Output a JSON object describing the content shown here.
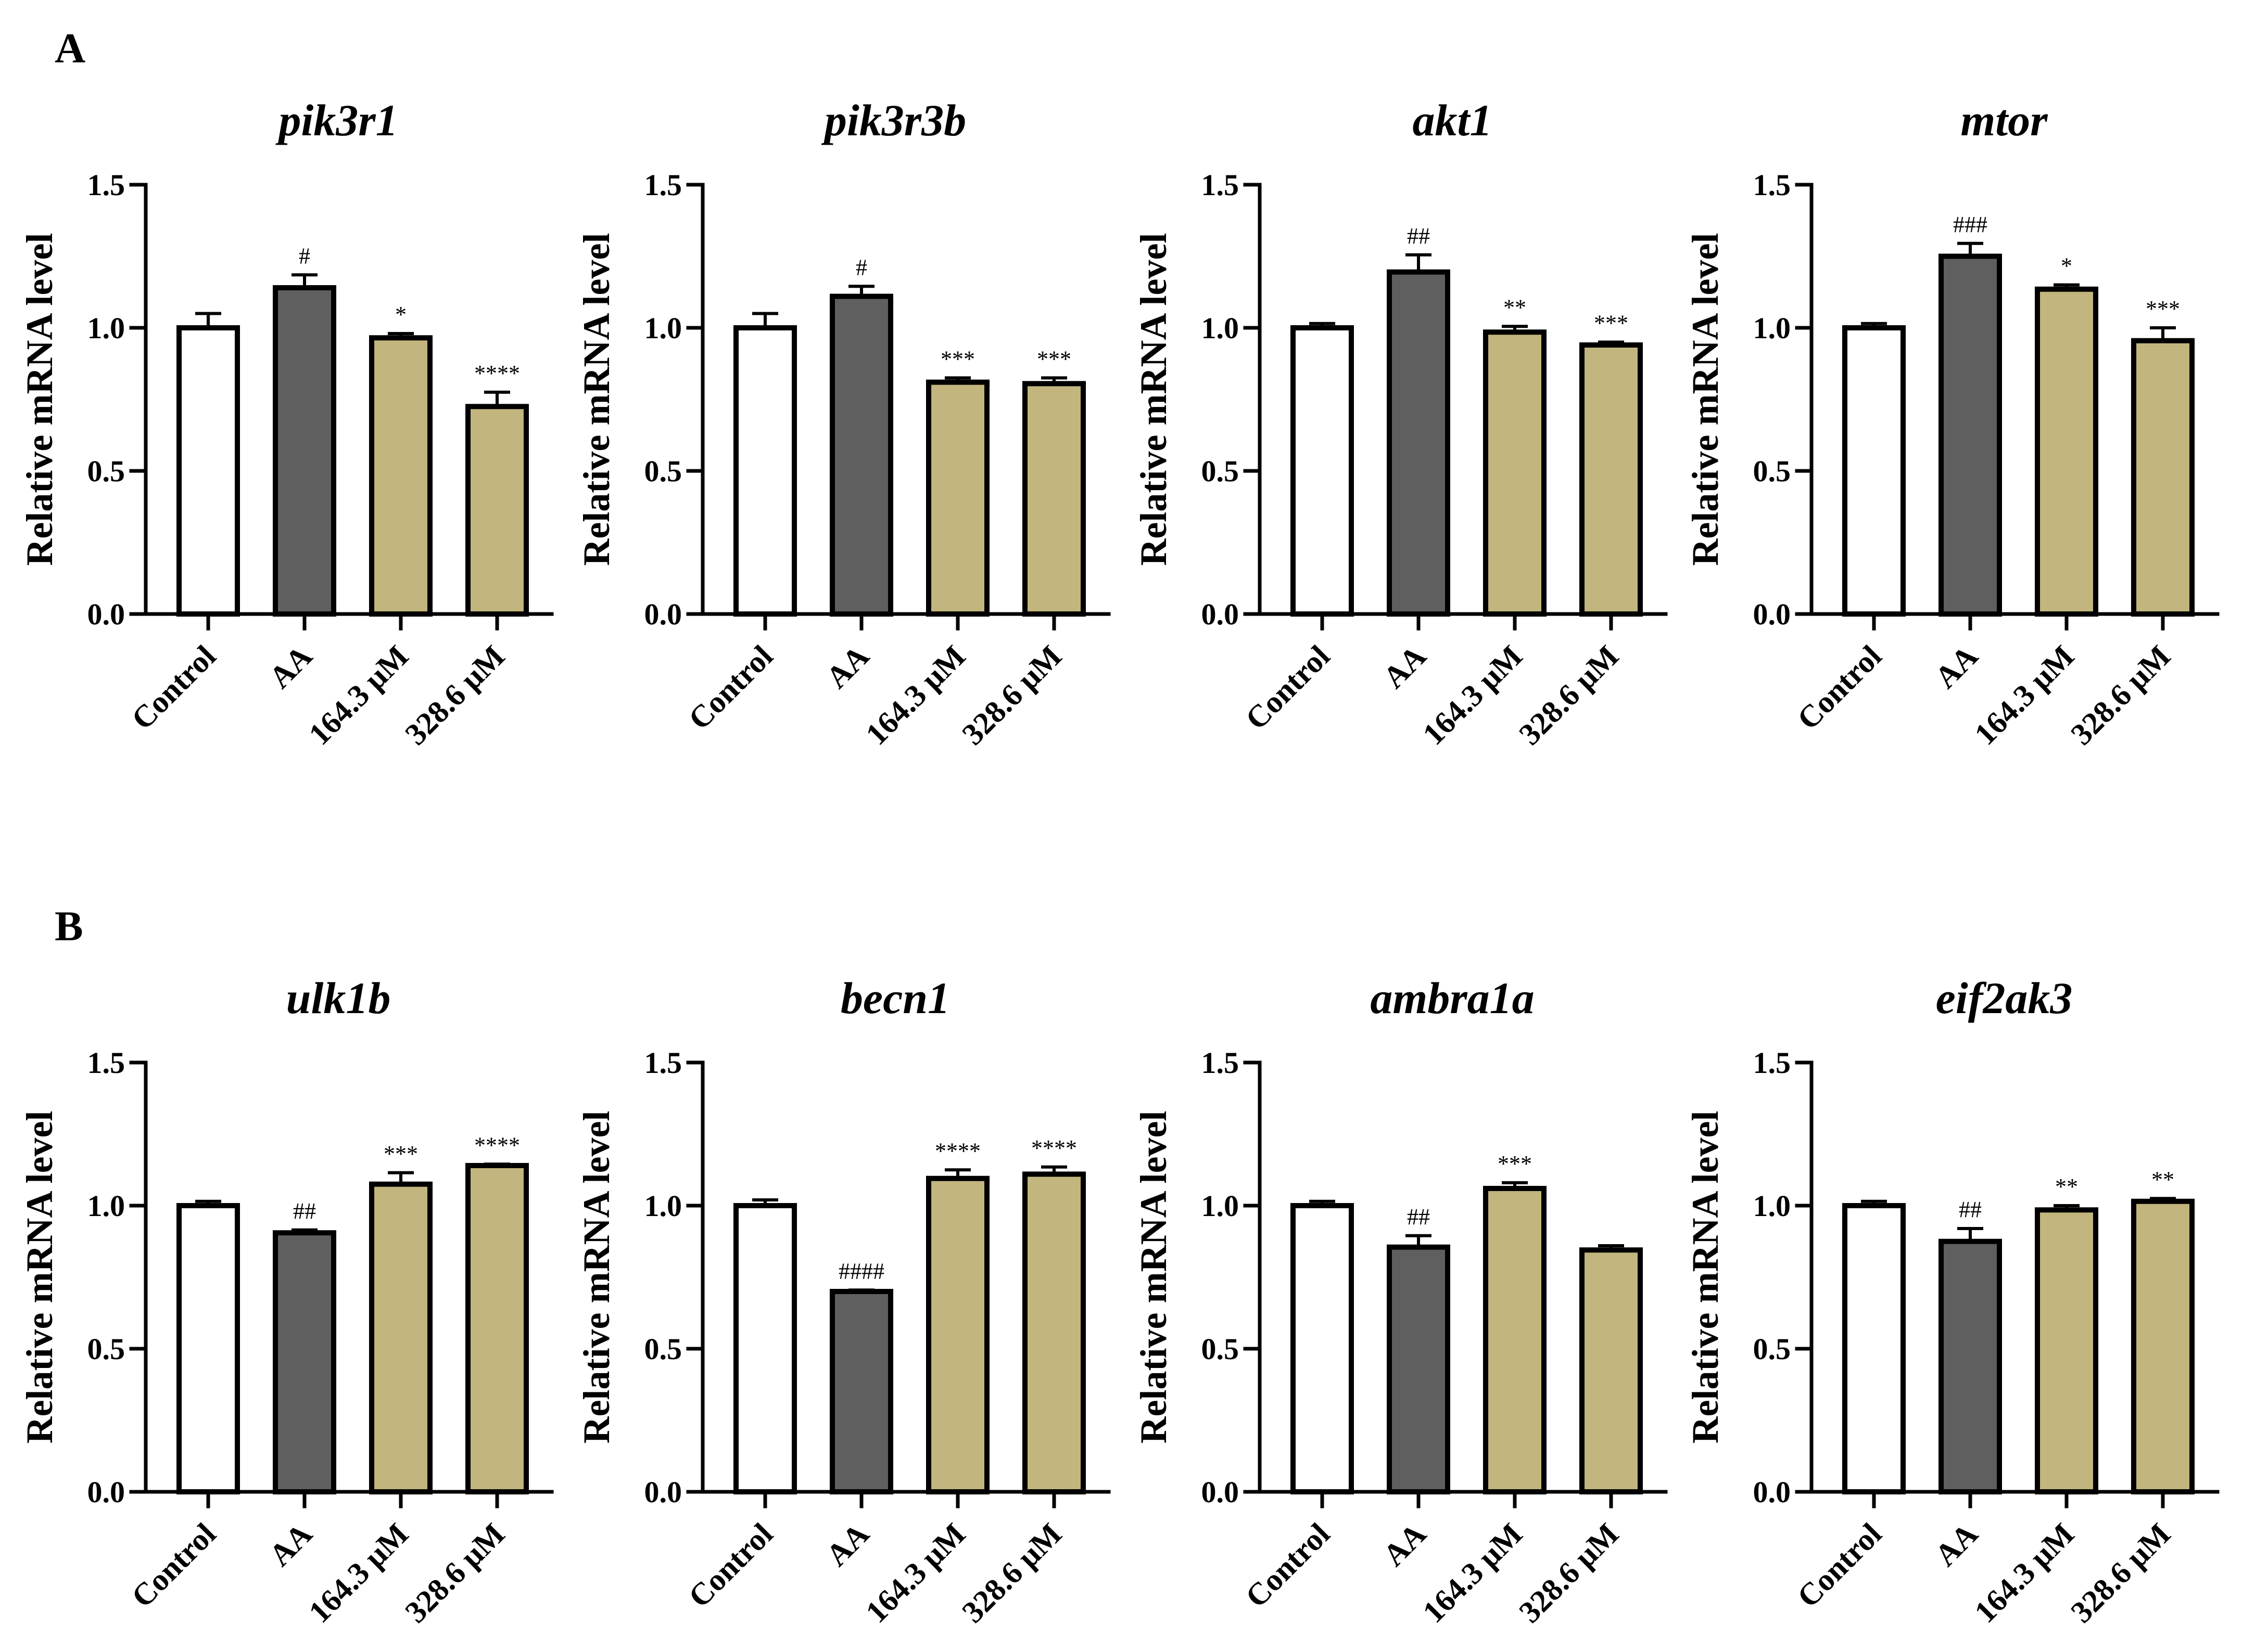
{
  "panels": [
    {
      "label": "A"
    },
    {
      "label": "B"
    }
  ],
  "colors": {
    "Control": "#ffffff",
    "AA": "#5f5f5f",
    "treated": "#c2b57d",
    "axis": "#000000"
  },
  "chart_data": [
    {
      "type": "bar",
      "panel": "A",
      "title": "pik3r1",
      "ylabel": "Relative mRNA level",
      "ylim": [
        0,
        1.5
      ],
      "yticks": [
        "0.0",
        "0.5",
        "1.0",
        "1.5"
      ],
      "categories": [
        "Control",
        "AA",
        "164.3 μM",
        "328.6 μM"
      ],
      "values": [
        1.0,
        1.14,
        0.965,
        0.725
      ],
      "errors": [
        0.05,
        0.045,
        0.015,
        0.05
      ],
      "significance": [
        "",
        "#",
        "*",
        "****"
      ]
    },
    {
      "type": "bar",
      "panel": "A",
      "title": "pik3r3b",
      "ylabel": "Relative mRNA level",
      "ylim": [
        0,
        1.5
      ],
      "yticks": [
        "0.0",
        "0.5",
        "1.0",
        "1.5"
      ],
      "categories": [
        "Control",
        "AA",
        "164.3 μM",
        "328.6 μM"
      ],
      "values": [
        1.0,
        1.11,
        0.81,
        0.805
      ],
      "errors": [
        0.05,
        0.035,
        0.015,
        0.02
      ],
      "significance": [
        "",
        "#",
        "***",
        "***"
      ]
    },
    {
      "type": "bar",
      "panel": "A",
      "title": "akt1",
      "ylabel": "Relative mRNA level",
      "ylim": [
        0,
        1.5
      ],
      "yticks": [
        "0.0",
        "0.5",
        "1.0",
        "1.5"
      ],
      "categories": [
        "Control",
        "AA",
        "164.3 μM",
        "328.6 μM"
      ],
      "values": [
        1.0,
        1.195,
        0.985,
        0.94
      ],
      "errors": [
        0.015,
        0.06,
        0.02,
        0.01
      ],
      "significance": [
        "",
        "##",
        "**",
        "***"
      ]
    },
    {
      "type": "bar",
      "panel": "A",
      "title": "mtor",
      "ylabel": "Relative mRNA level",
      "ylim": [
        0,
        1.5
      ],
      "yticks": [
        "0.0",
        "0.5",
        "1.0",
        "1.5"
      ],
      "categories": [
        "Control",
        "AA",
        "164.3 μM",
        "328.6 μM"
      ],
      "values": [
        1.0,
        1.25,
        1.135,
        0.955
      ],
      "errors": [
        0.015,
        0.045,
        0.015,
        0.045
      ],
      "significance": [
        "",
        "###",
        "*",
        "***"
      ]
    },
    {
      "type": "bar",
      "panel": "B",
      "title": "ulk1b",
      "ylabel": "Relative mRNA level",
      "ylim": [
        0,
        1.5
      ],
      "yticks": [
        "0.0",
        "0.5",
        "1.0",
        "1.5"
      ],
      "categories": [
        "Control",
        "AA",
        "164.3 μM",
        "328.6 μM"
      ],
      "values": [
        1.0,
        0.905,
        1.075,
        1.14
      ],
      "errors": [
        0.015,
        0.01,
        0.04,
        0.005
      ],
      "significance": [
        "",
        "##",
        "***",
        "****"
      ]
    },
    {
      "type": "bar",
      "panel": "B",
      "title": "becn1",
      "ylabel": "Relative mRNA level",
      "ylim": [
        0,
        1.5
      ],
      "yticks": [
        "0.0",
        "0.5",
        "1.0",
        "1.5"
      ],
      "categories": [
        "Control",
        "AA",
        "164.3 μM",
        "328.6 μM"
      ],
      "values": [
        1.0,
        0.7,
        1.095,
        1.11
      ],
      "errors": [
        0.02,
        0.005,
        0.03,
        0.025
      ],
      "significance": [
        "",
        "####",
        "****",
        "****"
      ]
    },
    {
      "type": "bar",
      "panel": "B",
      "title": "ambra1a",
      "ylabel": "Relative mRNA level",
      "ylim": [
        0,
        1.5
      ],
      "yticks": [
        "0.0",
        "0.5",
        "1.0",
        "1.5"
      ],
      "categories": [
        "Control",
        "AA",
        "164.3 μM",
        "328.6 μM"
      ],
      "values": [
        1.0,
        0.855,
        1.06,
        0.845
      ],
      "errors": [
        0.015,
        0.04,
        0.02,
        0.015
      ],
      "significance": [
        "",
        "##",
        "***",
        ""
      ]
    },
    {
      "type": "bar",
      "panel": "B",
      "title": "eif2ak3",
      "ylabel": "Relative mRNA level",
      "ylim": [
        0,
        1.5
      ],
      "yticks": [
        "0.0",
        "0.5",
        "1.0",
        "1.5"
      ],
      "categories": [
        "Control",
        "AA",
        "164.3 μM",
        "328.6 μM"
      ],
      "values": [
        1.0,
        0.875,
        0.985,
        1.015
      ],
      "errors": [
        0.015,
        0.045,
        0.015,
        0.01
      ],
      "significance": [
        "",
        "##",
        "**",
        "**"
      ]
    }
  ]
}
